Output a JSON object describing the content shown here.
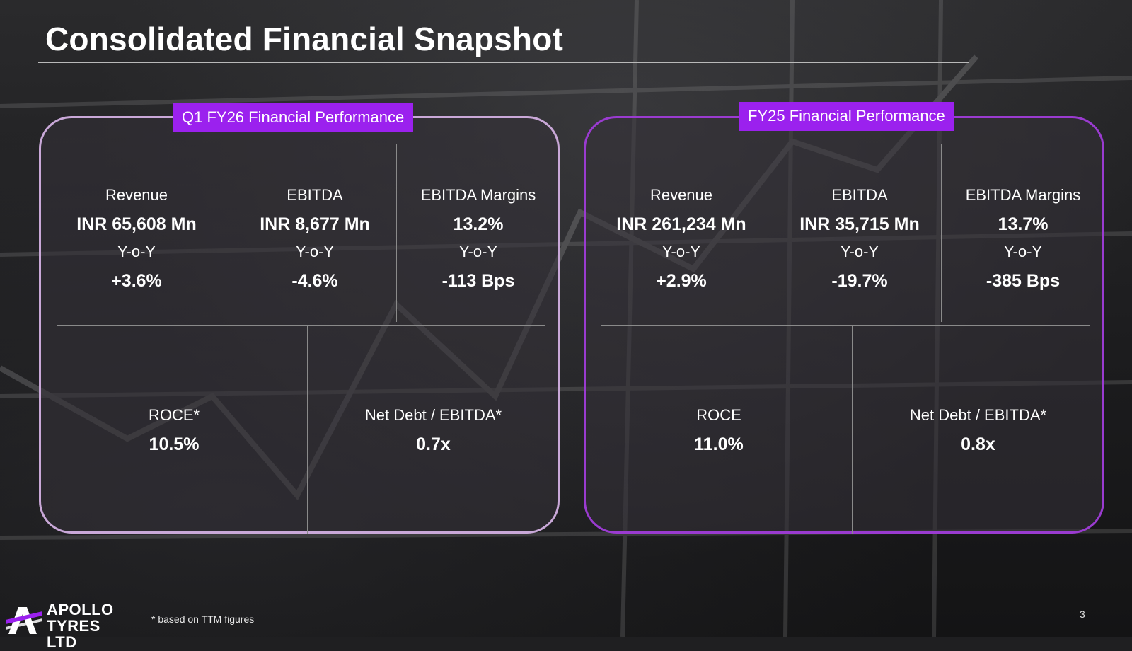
{
  "slide": {
    "title": "Consolidated Financial Snapshot",
    "footnote": "* based on TTM figures",
    "page_number": "3"
  },
  "logo": {
    "line1": "APOLLO",
    "line2": "TYRES LTD"
  },
  "colors": {
    "accent_purple": "#9b21ee",
    "left_panel_border": "#c9a8d8",
    "right_panel_border": "#9a3bd0"
  },
  "q1": {
    "heading": "Q1 FY26 Financial Performance",
    "metrics": [
      {
        "label": "Revenue",
        "value": "INR 65,608 Mn",
        "yoy_label": "Y-o-Y",
        "change": "+3.6%"
      },
      {
        "label": "EBITDA",
        "value": "INR 8,677 Mn",
        "yoy_label": "Y-o-Y",
        "change": "-4.6%"
      },
      {
        "label": "EBITDA Margins",
        "value": "13.2%",
        "yoy_label": "Y-o-Y",
        "change": "-113 Bps"
      }
    ],
    "ratios": [
      {
        "label": "ROCE*",
        "value": "10.5%"
      },
      {
        "label": "Net Debt / EBITDA*",
        "value": "0.7x"
      }
    ]
  },
  "fy25": {
    "heading": "FY25 Financial Performance",
    "metrics": [
      {
        "label": "Revenue",
        "value": "INR 261,234 Mn",
        "yoy_label": "Y-o-Y",
        "change": "+2.9%"
      },
      {
        "label": "EBITDA",
        "value": "INR 35,715 Mn",
        "yoy_label": "Y-o-Y",
        "change": "-19.7%"
      },
      {
        "label": "EBITDA Margins",
        "value": "13.7%",
        "yoy_label": "Y-o-Y",
        "change": "-385 Bps"
      }
    ],
    "ratios": [
      {
        "label": "ROCE",
        "value": "11.0%"
      },
      {
        "label": "Net Debt / EBITDA*",
        "value": "0.8x"
      }
    ]
  }
}
